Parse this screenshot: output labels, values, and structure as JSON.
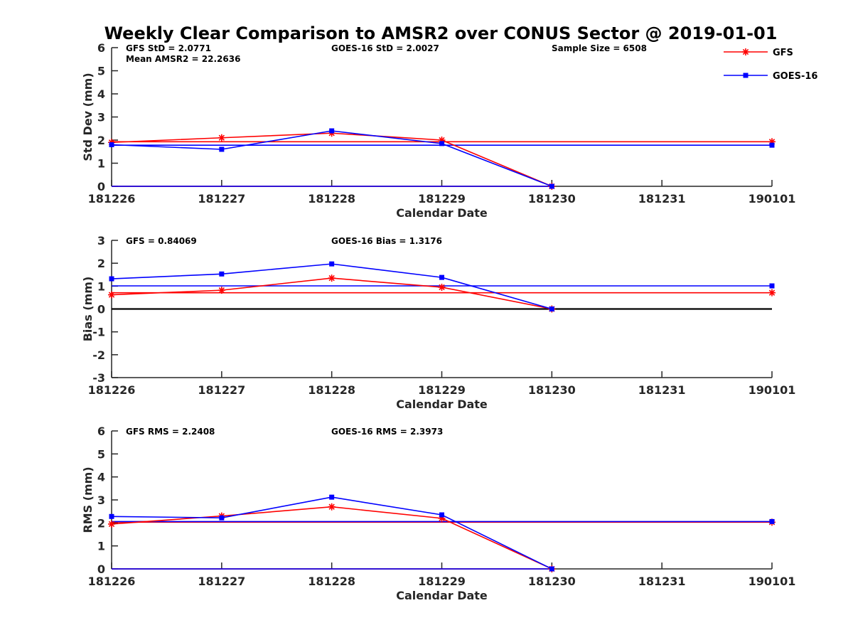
{
  "colors": {
    "gfs": "#ff0000",
    "goes": "#0000ff",
    "zero_line": "#000000",
    "axis": "#262626"
  },
  "title": "Weekly Clear Comparison to AMSR2 over CONUS Sector @ 2019-01-01",
  "legend": {
    "placement": "top-right",
    "items": [
      "GFS",
      "GOES-16"
    ]
  },
  "chart_data": [
    {
      "type": "line",
      "title": "Weekly Clear Comparison to AMSR2 over CONUS Sector @ 2019-01-01",
      "xlabel": "Calendar Date",
      "ylabel": "Std Dev (mm)",
      "categories": [
        "181226",
        "181227",
        "181228",
        "181229",
        "181230",
        "181231",
        "190101"
      ],
      "ylim": [
        0,
        6
      ],
      "yticks": [
        "0",
        "1",
        "2",
        "3",
        "4",
        "5",
        "6"
      ],
      "grid": false,
      "annotations": {
        "gfs": "GFS StD = 2.0771",
        "mean": "Mean AMSR2 = 22.2636",
        "goes": "GOES-16 StD = 2.0027",
        "sample": "Sample Size = 6508"
      },
      "series": [
        {
          "name": "GFS",
          "color": "#ff0000",
          "marker": "star",
          "values": [
            1.9,
            2.1,
            2.3,
            2.0,
            0.0,
            null,
            null
          ]
        },
        {
          "name": "GOES-16",
          "color": "#0000ff",
          "marker": "square",
          "values": [
            1.8,
            1.6,
            2.4,
            1.85,
            0.0,
            null,
            null
          ]
        }
      ],
      "reference_lines": [
        {
          "series": "GFS",
          "color": "#ff0000",
          "from": "181226",
          "to": "190101",
          "value": 1.93,
          "marker_end": "star"
        },
        {
          "series": "GOES-16",
          "color": "#0000ff",
          "from": "181226",
          "to": "190101",
          "value": 1.78,
          "marker_end": "square"
        },
        {
          "series": "GFS",
          "color": "#ff0000",
          "from": "181226",
          "to": "181230",
          "value": 0.0
        },
        {
          "series": "GOES-16",
          "color": "#0000ff",
          "from": "181226",
          "to": "181230",
          "value": 0.0
        }
      ]
    },
    {
      "type": "line",
      "xlabel": "Calendar Date",
      "ylabel": "Bias (mm)",
      "categories": [
        "181226",
        "181227",
        "181228",
        "181229",
        "181230",
        "181231",
        "190101"
      ],
      "ylim": [
        -3,
        3
      ],
      "yticks": [
        "-3",
        "-2",
        "-1",
        "0",
        "1",
        "2",
        "3"
      ],
      "grid": false,
      "annotations": {
        "gfs": "GFS = 0.84069",
        "goes": "GOES-16 Bias  = 1.3176"
      },
      "series": [
        {
          "name": "GFS",
          "color": "#ff0000",
          "marker": "star",
          "values": [
            0.62,
            0.82,
            1.35,
            0.95,
            0.0,
            null,
            null
          ]
        },
        {
          "name": "GOES-16",
          "color": "#0000ff",
          "marker": "square",
          "values": [
            1.32,
            1.53,
            1.97,
            1.38,
            0.0,
            null,
            null
          ]
        }
      ],
      "reference_lines": [
        {
          "series": "GFS",
          "color": "#ff0000",
          "from": "181226",
          "to": "190101",
          "value": 0.71,
          "marker_end": "star"
        },
        {
          "series": "GOES-16",
          "color": "#0000ff",
          "from": "181226",
          "to": "190101",
          "value": 1.01,
          "marker_end": "square"
        },
        {
          "series": "zero",
          "color": "#000000",
          "from": "181226",
          "to": "190101",
          "value": 0.0
        }
      ]
    },
    {
      "type": "line",
      "xlabel": "Calendar Date",
      "ylabel": "RMS (mm)",
      "categories": [
        "181226",
        "181227",
        "181228",
        "181229",
        "181230",
        "181231",
        "190101"
      ],
      "ylim": [
        0,
        6
      ],
      "yticks": [
        "0",
        "1",
        "2",
        "3",
        "4",
        "5",
        "6"
      ],
      "grid": false,
      "annotations": {
        "gfs": "GFS RMS = 2.2408",
        "goes": "GOES-16 RMS = 2.3973"
      },
      "series": [
        {
          "name": "GFS",
          "color": "#ff0000",
          "marker": "star",
          "values": [
            1.95,
            2.3,
            2.7,
            2.2,
            0.0,
            null,
            null
          ]
        },
        {
          "name": "GOES-16",
          "color": "#0000ff",
          "marker": "square",
          "values": [
            2.28,
            2.22,
            3.12,
            2.35,
            0.0,
            null,
            null
          ]
        }
      ],
      "reference_lines": [
        {
          "series": "GFS",
          "color": "#ff0000",
          "from": "181226",
          "to": "190101",
          "value": 2.03,
          "marker_end": "star"
        },
        {
          "series": "GOES-16",
          "color": "#0000ff",
          "from": "181226",
          "to": "190101",
          "value": 2.06,
          "marker_end": "square"
        },
        {
          "series": "GFS",
          "color": "#ff0000",
          "from": "181226",
          "to": "181230",
          "value": 0.0
        },
        {
          "series": "GOES-16",
          "color": "#0000ff",
          "from": "181226",
          "to": "181230",
          "value": 0.0
        }
      ]
    }
  ]
}
